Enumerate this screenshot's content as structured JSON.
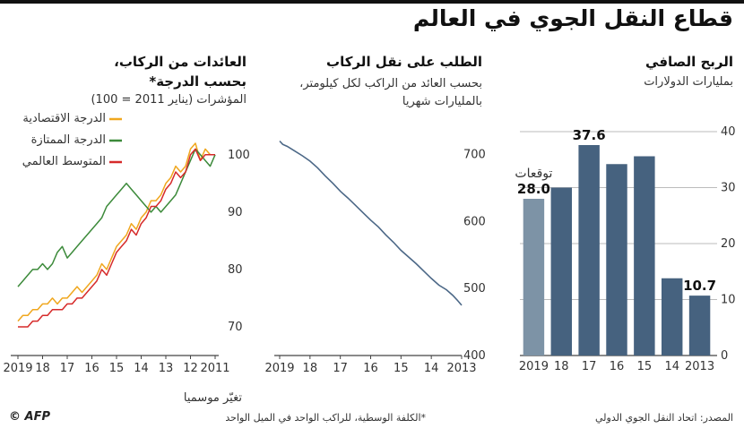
{
  "title": "قطاع النقل الجوي في العالم",
  "source": "المصدر: اتحاد النقل الجوي الدولي",
  "footnote": "*الكلفة الوسطية، للراكب الواحد في الميل الواحد",
  "credit": "© AFP",
  "colors": {
    "bar": "#46627f",
    "bar_forecast": "#7d93a6",
    "axis": "#444444",
    "demand_line": "#4c6887",
    "economy": "#f0a71e",
    "premium": "#3c8a3a",
    "average": "#d62a2a"
  },
  "panels": {
    "profit": {
      "title": "الربح الصافي",
      "subtitle": "بمليارات الدولارات",
      "forecast_label": "توقعات"
    },
    "demand": {
      "title": "الطلب على نقل الركاب",
      "subtitle1": "بحسب العائد من الراكب لكل كيلومتر،",
      "subtitle2": "بالمليارات شهريا",
      "seasonal_note": "تغيّر موسميا"
    },
    "revenue": {
      "title1": "العائدات من الركاب،",
      "title2": "بحسب الدرجة*",
      "subtitle": "المؤشرات (يناير 2011 = 100)"
    }
  },
  "chart_data": [
    {
      "type": "bar",
      "title": "الربح الصافي",
      "ylabel": "بمليارات الدولارات",
      "categories": [
        "2019",
        "18",
        "17",
        "16",
        "15",
        "14",
        "2013"
      ],
      "values": [
        28.0,
        30.0,
        37.6,
        34.2,
        35.6,
        13.8,
        10.7
      ],
      "data_labels": {
        "2019": "28.0",
        "17": "37.6",
        "2013": "10.7"
      },
      "forecast": [
        "2019"
      ],
      "ylim": [
        0,
        40
      ],
      "yticks": [
        0,
        10,
        20,
        30,
        40
      ],
      "ytick_labels": [
        "0",
        "10",
        "20",
        "30",
        "40"
      ],
      "y_axis_side": "right",
      "x_direction": "right-to-left"
    },
    {
      "type": "line",
      "title": "الطلب على نقل الركاب",
      "ylabel": "بحسب العائد من الراكب لكل كيلومتر، بالمليارات شهريا",
      "series": [
        {
          "x": [
            2019.0,
            2018.9,
            2018.75,
            2018.5,
            2018.25,
            2018.0,
            2017.75,
            2017.5,
            2017.25,
            2017.0,
            2016.75,
            2016.5,
            2016.25,
            2016.0,
            2015.75,
            2015.5,
            2015.25,
            2015.0,
            2014.75,
            2014.5,
            2014.25,
            2014.0,
            2013.75,
            2013.5,
            2013.3,
            2013.15,
            2013.0
          ],
          "y": [
            720,
            715,
            712,
            705,
            698,
            690,
            680,
            668,
            657,
            645,
            635,
            624,
            613,
            602,
            592,
            580,
            569,
            557,
            547,
            537,
            526,
            515,
            505,
            498,
            490,
            483,
            475
          ]
        }
      ],
      "xticks": [
        2019,
        2018,
        2017,
        2016,
        2015,
        2014,
        2013
      ],
      "xtick_labels": [
        "2019",
        "18",
        "17",
        "16",
        "15",
        "14",
        "2013"
      ],
      "ylim": [
        400,
        730
      ],
      "yticks": [
        400,
        500,
        600,
        700
      ],
      "ytick_labels": [
        "400",
        "500",
        "600",
        "700"
      ],
      "y_axis_side": "right",
      "x_direction": "right-to-left",
      "annotation": "تغيّر موسميا"
    },
    {
      "type": "line",
      "title": "العائدات من الركاب، بحسب الدرجة*",
      "ylabel": "المؤشرات (يناير 2011 = 100)",
      "xticks": [
        2019,
        2018,
        2017,
        2016,
        2015,
        2014,
        2013,
        2012,
        2011
      ],
      "xtick_labels": [
        "2019",
        "18",
        "17",
        "16",
        "15",
        "14",
        "13",
        "12",
        "2011"
      ],
      "ylim": [
        65,
        102
      ],
      "yticks": [
        70,
        80,
        90,
        100
      ],
      "ytick_labels": [
        "70",
        "80",
        "90",
        "100"
      ],
      "y_axis_side": "right",
      "x_direction": "right-to-left",
      "legend_position": "top-left",
      "series": [
        {
          "name": "الدرجة الاقتصادية",
          "color": "#f0a71e",
          "x": [
            2011.0,
            2011.2,
            2011.4,
            2011.6,
            2011.8,
            2012.0,
            2012.2,
            2012.4,
            2012.6,
            2012.8,
            2013.0,
            2013.2,
            2013.4,
            2013.6,
            2013.8,
            2014.0,
            2014.2,
            2014.4,
            2014.6,
            2014.8,
            2015.0,
            2015.2,
            2015.4,
            2015.6,
            2015.8,
            2016.0,
            2016.2,
            2016.4,
            2016.6,
            2016.8,
            2017.0,
            2017.2,
            2017.4,
            2017.6,
            2017.8,
            2018.0,
            2018.2,
            2018.4,
            2018.6,
            2018.8,
            2019.0
          ],
          "y": [
            100,
            100,
            101,
            99,
            102,
            101,
            98,
            97,
            98,
            96,
            95,
            93,
            92,
            92,
            90,
            89,
            87,
            88,
            86,
            85,
            84,
            82,
            80,
            81,
            79,
            78,
            77,
            76,
            77,
            76,
            75,
            75,
            74,
            75,
            74,
            74,
            73,
            73,
            72,
            72,
            71
          ]
        },
        {
          "name": "الدرجة الممتازة",
          "color": "#3c8a3a",
          "x": [
            2011.0,
            2011.2,
            2011.4,
            2011.6,
            2011.8,
            2012.0,
            2012.2,
            2012.4,
            2012.6,
            2012.8,
            2013.0,
            2013.2,
            2013.4,
            2013.6,
            2013.8,
            2014.0,
            2014.2,
            2014.4,
            2014.6,
            2014.8,
            2015.0,
            2015.2,
            2015.4,
            2015.6,
            2015.8,
            2016.0,
            2016.2,
            2016.4,
            2016.6,
            2016.8,
            2017.0,
            2017.2,
            2017.4,
            2017.6,
            2017.8,
            2018.0,
            2018.2,
            2018.4,
            2018.6,
            2018.8,
            2019.0
          ],
          "y": [
            100,
            98,
            99,
            100,
            101,
            99,
            97,
            95,
            93,
            92,
            91,
            90,
            91,
            90,
            91,
            92,
            93,
            94,
            95,
            94,
            93,
            92,
            91,
            89,
            88,
            87,
            86,
            85,
            84,
            83,
            82,
            84,
            83,
            81,
            80,
            81,
            80,
            80,
            79,
            78,
            77
          ]
        },
        {
          "name": "المتوسط العالمي",
          "color": "#d62a2a",
          "x": [
            2011.0,
            2011.2,
            2011.4,
            2011.6,
            2011.8,
            2012.0,
            2012.2,
            2012.4,
            2012.6,
            2012.8,
            2013.0,
            2013.2,
            2013.4,
            2013.6,
            2013.8,
            2014.0,
            2014.2,
            2014.4,
            2014.6,
            2014.8,
            2015.0,
            2015.2,
            2015.4,
            2015.6,
            2015.8,
            2016.0,
            2016.2,
            2016.4,
            2016.6,
            2016.8,
            2017.0,
            2017.2,
            2017.4,
            2017.6,
            2017.8,
            2018.0,
            2018.2,
            2018.4,
            2018.6,
            2018.8,
            2019.0
          ],
          "y": [
            100,
            100,
            100,
            99,
            101,
            100,
            97,
            96,
            97,
            95,
            94,
            92,
            91,
            91,
            89,
            88,
            86,
            87,
            85,
            84,
            83,
            81,
            79,
            80,
            78,
            77,
            76,
            75,
            75,
            74,
            74,
            73,
            73,
            73,
            72,
            72,
            71,
            71,
            70,
            70,
            70
          ]
        }
      ]
    }
  ]
}
